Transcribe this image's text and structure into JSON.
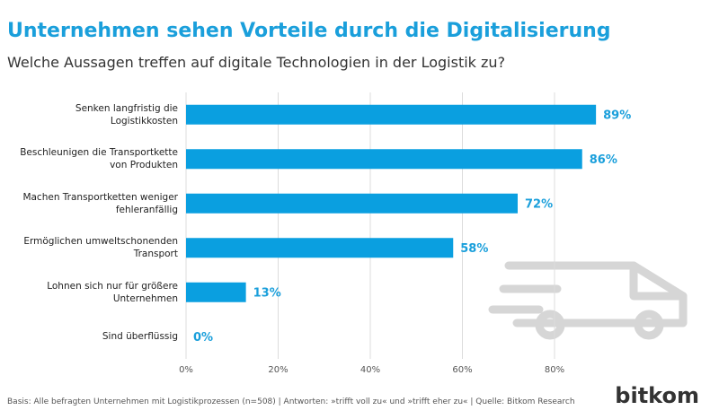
{
  "chart_data": {
    "type": "bar",
    "orientation": "horizontal",
    "title": "Unternehmen sehen Vorteile durch die Digitalisierung",
    "subtitle": "Welche Aussagen treffen auf digitale Technologien in der Logistik zu?",
    "categories": [
      "Senken langfristig die Logistikkosten",
      "Beschleunigen die Transportkette von Produkten",
      "Machen Transportketten weniger fehleranfällig",
      "Ermöglichen umweltschonenden Transport",
      "Lohnen sich nur für größere Unternehmen",
      "Sind überflüssig"
    ],
    "values": [
      89,
      86,
      72,
      58,
      13,
      0
    ],
    "value_labels": [
      "89%",
      "86%",
      "72%",
      "58%",
      "13%",
      "0%"
    ],
    "color": "#0a9fe0",
    "xlim": [
      0,
      100
    ],
    "xticks": [
      {
        "value": 0,
        "label": "0%"
      },
      {
        "value": 20,
        "label": "20%"
      },
      {
        "value": 40,
        "label": "40%"
      },
      {
        "value": 60,
        "label": "60%"
      },
      {
        "value": 80,
        "label": "80%"
      }
    ],
    "grid": true
  },
  "footer": "Basis: Alle befragten Unternehmen mit Logistikprozessen (n=508) | Antworten: »trifft voll zu« und »trifft eher zu« | Quelle: Bitkom Research",
  "logo": "bitkom"
}
